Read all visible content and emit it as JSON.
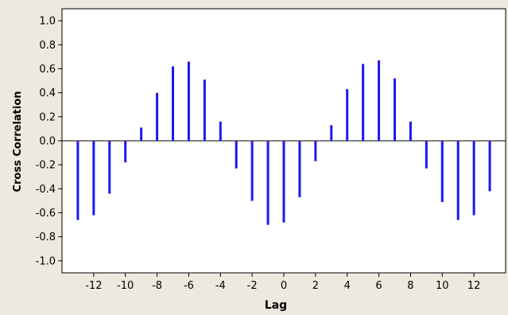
{
  "colors": {
    "outer_background": "#EDE9DF",
    "plot_background": "#FFFFFF",
    "bar": "#1A1AF0",
    "axis": "#000000",
    "zero_line": "#000000"
  },
  "chart_data": {
    "type": "bar",
    "title": "",
    "xlabel": "Lag",
    "ylabel": "Cross Correlation",
    "xlim": [
      -14,
      14
    ],
    "ylim": [
      -1.1,
      1.1
    ],
    "grid": false,
    "legend": "none",
    "x_ticks": [
      -12,
      -10,
      -8,
      -6,
      -4,
      -2,
      0,
      2,
      4,
      6,
      8,
      10,
      12
    ],
    "y_ticks": [
      -1.0,
      -0.8,
      -0.6,
      -0.4,
      -0.2,
      0.0,
      0.2,
      0.4,
      0.6,
      0.8,
      1.0
    ],
    "x_tick_labels": [
      "-12",
      "-10",
      "-8",
      "-6",
      "-4",
      "-2",
      "0",
      "2",
      "4",
      "6",
      "8",
      "10",
      "12"
    ],
    "y_tick_labels": [
      "-1.0",
      "-0.8",
      "-0.6",
      "-0.4",
      "-0.2",
      "0.0",
      "0.2",
      "0.4",
      "0.6",
      "0.8",
      "1.0"
    ],
    "x": [
      -13,
      -12,
      -11,
      -10,
      -9,
      -8,
      -7,
      -6,
      -5,
      -4,
      -3,
      -2,
      -1,
      0,
      1,
      2,
      3,
      4,
      5,
      6,
      7,
      8,
      9,
      10,
      11,
      12,
      13
    ],
    "values": [
      -0.66,
      -0.62,
      -0.44,
      -0.18,
      0.11,
      0.4,
      0.62,
      0.66,
      0.51,
      0.16,
      -0.23,
      -0.5,
      -0.7,
      -0.68,
      -0.47,
      -0.17,
      0.13,
      0.43,
      0.64,
      0.67,
      0.52,
      0.16,
      -0.23,
      -0.51,
      -0.66,
      -0.62,
      -0.42
    ]
  }
}
